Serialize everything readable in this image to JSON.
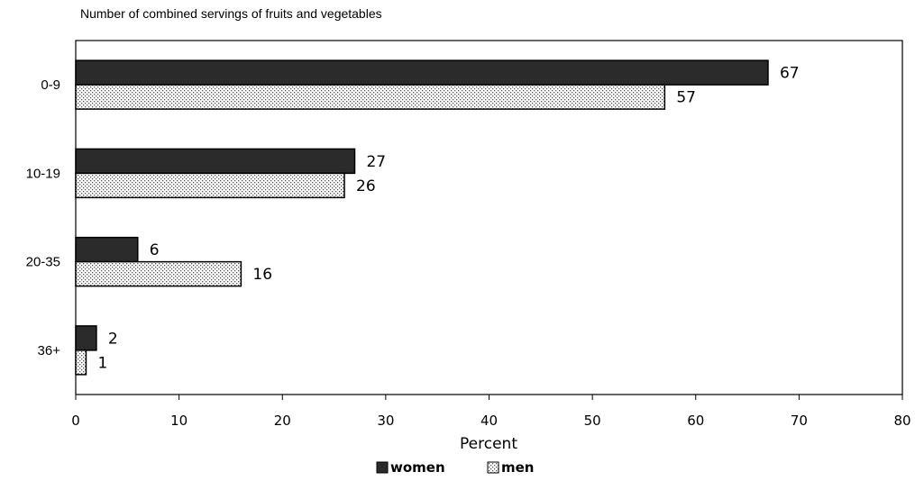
{
  "chart_data": {
    "type": "bar",
    "orientation": "horizontal",
    "title": "Number of combined servings of fruits and vegetables",
    "categories": [
      "0-9",
      "10-19",
      "20-35",
      "36+"
    ],
    "series": [
      {
        "name": "women",
        "values": [
          67,
          27,
          6,
          2
        ],
        "color": "#2b2b2b",
        "pattern": "solid"
      },
      {
        "name": "men",
        "values": [
          57,
          26,
          16,
          1
        ],
        "color": "#ffffff",
        "pattern": "dotted"
      }
    ],
    "xlabel": "Percent",
    "xlim": [
      0,
      80
    ],
    "xticks": [
      0,
      10,
      20,
      30,
      40,
      50,
      60,
      70,
      80
    ],
    "grid": false,
    "legend_position": "bottom"
  }
}
